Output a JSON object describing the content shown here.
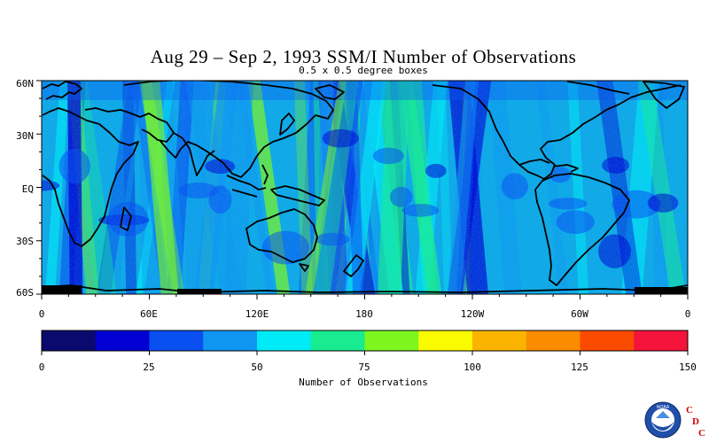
{
  "title": "Aug 29 – Sep 2, 1993 SSM/I Number of Observations",
  "subtitle": "0.5 x 0.5 degree boxes",
  "lat_labels": [
    "60N",
    "30N",
    "EQ",
    "30S",
    "60S"
  ],
  "lon_labels": [
    "0",
    "60E",
    "120E",
    "180",
    "120W",
    "60W",
    "0"
  ],
  "colorbar": {
    "title": "Number of Observations",
    "tick_labels": [
      "0",
      "25",
      "50",
      "75",
      "100",
      "125",
      "150"
    ],
    "colors": [
      "#0a0a6e",
      "#0000d2",
      "#0a4ff0",
      "#0f96f0",
      "#00ebf5",
      "#19eb91",
      "#7df51e",
      "#fafa00",
      "#fab400",
      "#fa8c00",
      "#fa4b00",
      "#f5143c"
    ]
  },
  "logo": {
    "noaa_text": "NOAA",
    "cdc_letters": [
      "C",
      "D",
      "C"
    ]
  },
  "chart_data": {
    "type": "heatmap",
    "title": "Aug 29 – Sep 2, 1993 SSM/I Number of Observations",
    "subtitle": "0.5 x 0.5 degree boxes",
    "colorbar_label": "Number of Observations",
    "value_range": [
      0,
      150
    ],
    "x_ticks": [
      "0",
      "60E",
      "120E",
      "180",
      "120W",
      "60W",
      "0"
    ],
    "y_ticks": [
      "60N",
      "30N",
      "EQ",
      "30S",
      "60S"
    ]
  }
}
